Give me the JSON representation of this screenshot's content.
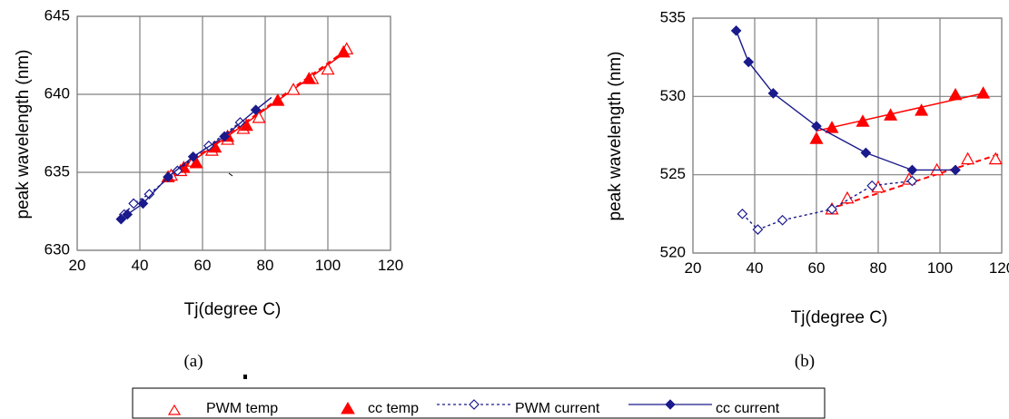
{
  "legend": {
    "items": [
      {
        "label": "PWM temp",
        "marker": "open-triangle",
        "line": "none",
        "color": "#ff0000"
      },
      {
        "label": "cc temp",
        "marker": "filled-triangle",
        "line": "none",
        "color": "#ff0000"
      },
      {
        "label": "PWM current",
        "marker": "open-diamond",
        "line": "dashed",
        "color": "#1a1a8c"
      },
      {
        "label": "cc current",
        "marker": "filled-diamond",
        "line": "solid",
        "color": "#1a1a8c"
      }
    ]
  },
  "colors": {
    "red": "#ff0000",
    "navy": "#1a1a8c",
    "grid": "#808080"
  },
  "chart_data": [
    {
      "panel_label": "(a)",
      "type": "scatter",
      "xlabel": "Tj(degree C)",
      "ylabel": "peak wavelength (nm)",
      "xlim": [
        20,
        120
      ],
      "ylim": [
        630,
        645
      ],
      "xticks": [
        "20",
        "40",
        "60",
        "80",
        "100",
        "120"
      ],
      "yticks": [
        "630",
        "635",
        "640",
        "645"
      ],
      "grid": true,
      "series": [
        {
          "name": "PWM temp",
          "marker": "open-triangle",
          "x": [
            50,
            53,
            57,
            63,
            68,
            73,
            78,
            84,
            89,
            95,
            100,
            106
          ],
          "y": [
            634.8,
            635.1,
            635.7,
            636.4,
            637.1,
            637.8,
            638.5,
            639.6,
            640.3,
            641.0,
            641.6,
            642.9
          ]
        },
        {
          "name": "cc temp",
          "marker": "filled-triangle",
          "x": [
            49,
            54,
            58,
            64,
            68,
            74,
            84,
            94,
            105
          ],
          "y": [
            634.7,
            635.3,
            635.6,
            636.6,
            637.3,
            638.0,
            639.6,
            641.0,
            642.7
          ]
        },
        {
          "name": "PWM current",
          "marker": "open-diamond",
          "line": "dashed",
          "x": [
            35,
            38,
            43,
            52,
            62,
            72
          ],
          "y": [
            632.3,
            633.0,
            633.6,
            635.1,
            636.7,
            638.2
          ]
        },
        {
          "name": "cc current",
          "marker": "filled-diamond",
          "line": "solid",
          "x": [
            34,
            36,
            41,
            49,
            57,
            67,
            77,
            82
          ],
          "y": [
            632.0,
            632.3,
            633.0,
            634.7,
            636.0,
            637.3,
            639.0,
            639.8
          ],
          "marker_count": 7
        }
      ],
      "trendlines": [
        {
          "series": "PWM temp",
          "color": "#ff0000",
          "style": "dashed",
          "x": [
            50,
            107
          ],
          "y": [
            634.8,
            643.0
          ]
        },
        {
          "series": "cc temp",
          "color": "#ff0000",
          "style": "solid",
          "x": [
            49,
            105
          ],
          "y": [
            634.6,
            642.6
          ]
        }
      ]
    },
    {
      "panel_label": "(b)",
      "type": "scatter",
      "xlabel": "Tj(degree C)",
      "ylabel": "peak wavelength (nm)",
      "xlim": [
        20,
        120
      ],
      "ylim": [
        520,
        535
      ],
      "xticks": [
        "20",
        "40",
        "60",
        "80",
        "100",
        "120"
      ],
      "yticks": [
        "520",
        "525",
        "530",
        "535"
      ],
      "grid": true,
      "series": [
        {
          "name": "PWM temp",
          "marker": "open-triangle",
          "x": [
            65,
            70,
            80,
            90,
            99,
            109,
            118
          ],
          "y": [
            522.8,
            523.5,
            524.2,
            524.7,
            525.3,
            526.0,
            526.0
          ]
        },
        {
          "name": "cc temp",
          "marker": "filled-triangle",
          "x": [
            60,
            65,
            75,
            84,
            94,
            105,
            114
          ],
          "y": [
            527.3,
            528.0,
            528.4,
            528.8,
            529.1,
            530.1,
            530.2
          ]
        },
        {
          "name": "PWM current",
          "marker": "open-diamond",
          "line": "dashed",
          "x": [
            36,
            41,
            49,
            65,
            78,
            91
          ],
          "y": [
            522.5,
            521.5,
            522.1,
            522.8,
            524.3,
            524.6
          ]
        },
        {
          "name": "cc current",
          "marker": "filled-diamond",
          "line": "solid",
          "x": [
            34,
            38,
            46,
            60,
            76,
            91,
            105
          ],
          "y": [
            534.2,
            532.2,
            530.2,
            528.1,
            526.4,
            525.3,
            525.3
          ]
        }
      ],
      "trendlines": [
        {
          "series": "PWM temp",
          "color": "#ff0000",
          "style": "dashed",
          "x": [
            64,
            119
          ],
          "y": [
            522.8,
            526.3
          ]
        },
        {
          "series": "cc temp",
          "color": "#ff0000",
          "style": "solid",
          "x": [
            60,
            114
          ],
          "y": [
            527.8,
            530.2
          ]
        }
      ]
    }
  ]
}
